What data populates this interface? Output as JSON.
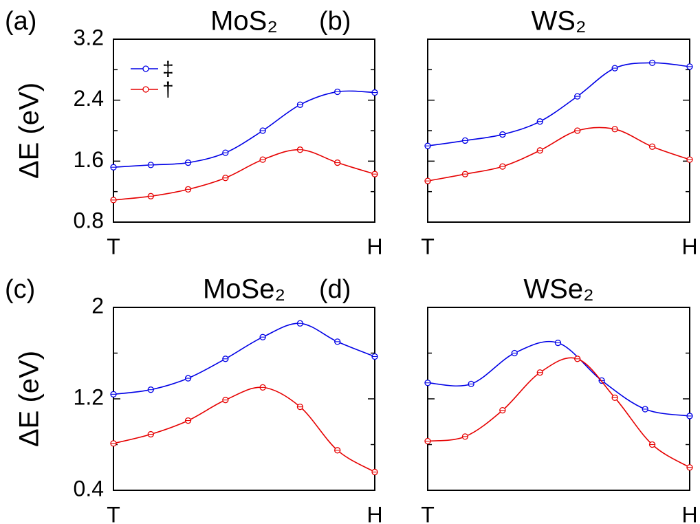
{
  "chart_data": [
    {
      "type": "line",
      "annotation": "(a)",
      "title": "MoS₂",
      "ylabel": "ΔE (eV)",
      "legend": "upper left",
      "xlim": [
        0,
        7
      ],
      "xticks": [
        {
          "value": 0,
          "label": "T"
        },
        {
          "value": 7,
          "label": "H"
        }
      ],
      "ylim": [
        0.8,
        3.2
      ],
      "yticks": [
        0.8,
        1.6,
        2.4,
        3.2
      ],
      "yminorticks": [
        1.2,
        2.0,
        2.8
      ],
      "ytick_labels": true,
      "series": [
        {
          "name": "‡",
          "color": "#0000e6",
          "x": [
            0,
            1,
            2,
            3,
            4,
            5,
            6,
            7
          ],
          "values": [
            1.52,
            1.55,
            1.58,
            1.71,
            2.0,
            2.34,
            2.51,
            2.5
          ]
        },
        {
          "name": "†",
          "color": "#e60000",
          "x": [
            0,
            1,
            2,
            3,
            4,
            5,
            6,
            7
          ],
          "values": [
            1.09,
            1.14,
            1.23,
            1.38,
            1.62,
            1.75,
            1.58,
            1.43
          ]
        }
      ]
    },
    {
      "type": "line",
      "annotation": "(b)",
      "title": "WS₂",
      "xlim": [
        0,
        7
      ],
      "xticks": [
        {
          "value": 0,
          "label": "T"
        },
        {
          "value": 7,
          "label": "H"
        }
      ],
      "ylim": [
        0.8,
        3.2
      ],
      "yticks": [
        0.8,
        1.6,
        2.4,
        3.2
      ],
      "yminorticks": [
        1.2,
        2.0,
        2.8
      ],
      "ytick_labels": false,
      "series": [
        {
          "name": "‡",
          "color": "#0000e6",
          "x": [
            0,
            1,
            2,
            3,
            4,
            5,
            6,
            7
          ],
          "values": [
            1.8,
            1.87,
            1.95,
            2.12,
            2.45,
            2.82,
            2.89,
            2.84
          ]
        },
        {
          "name": "†",
          "color": "#e60000",
          "x": [
            0,
            1,
            2,
            3,
            4,
            5,
            6,
            7
          ],
          "values": [
            1.34,
            1.43,
            1.53,
            1.74,
            2.0,
            2.02,
            1.79,
            1.62
          ]
        }
      ]
    },
    {
      "type": "line",
      "annotation": "(c)",
      "title": "MoSe₂",
      "ylabel": "ΔE (eV)",
      "xlim": [
        0,
        7
      ],
      "xticks": [
        {
          "value": 0,
          "label": "T"
        },
        {
          "value": 7,
          "label": "H"
        }
      ],
      "ylim": [
        0.4,
        2.0
      ],
      "yticks": [
        0.4,
        1.2,
        2.0
      ],
      "yminorticks": [
        0.8,
        1.6
      ],
      "ytick_labels": true,
      "series": [
        {
          "name": "‡",
          "color": "#0000e6",
          "x": [
            0,
            1,
            2,
            3,
            4,
            5,
            6,
            7
          ],
          "values": [
            1.24,
            1.28,
            1.38,
            1.55,
            1.74,
            1.86,
            1.7,
            1.57
          ]
        },
        {
          "name": "†",
          "color": "#e60000",
          "x": [
            0,
            1,
            2,
            3,
            4,
            5,
            6,
            7
          ],
          "values": [
            0.81,
            0.89,
            1.01,
            1.19,
            1.3,
            1.13,
            0.75,
            0.56
          ]
        }
      ]
    },
    {
      "type": "line",
      "annotation": "(d)",
      "title": "WSe₂",
      "xlim": [
        0,
        7
      ],
      "xticks": [
        {
          "value": 0,
          "label": "T"
        },
        {
          "value": 7,
          "label": "H"
        }
      ],
      "ylim": [
        0.4,
        2.0
      ],
      "yticks": [
        0.4,
        1.2,
        2.0
      ],
      "yminorticks": [
        0.8,
        1.6
      ],
      "ytick_labels": false,
      "series": [
        {
          "name": "‡",
          "color": "#0000e6",
          "x": [
            0,
            1.16,
            2.32,
            3.48,
            4.65,
            5.81,
            7
          ],
          "values": [
            1.34,
            1.33,
            1.6,
            1.69,
            1.36,
            1.11,
            1.05
          ]
        },
        {
          "name": "†",
          "color": "#e60000",
          "x": [
            0,
            1,
            2,
            3,
            4,
            5,
            6,
            7
          ],
          "values": [
            0.83,
            0.87,
            1.1,
            1.43,
            1.55,
            1.21,
            0.8,
            0.6
          ]
        }
      ]
    }
  ]
}
